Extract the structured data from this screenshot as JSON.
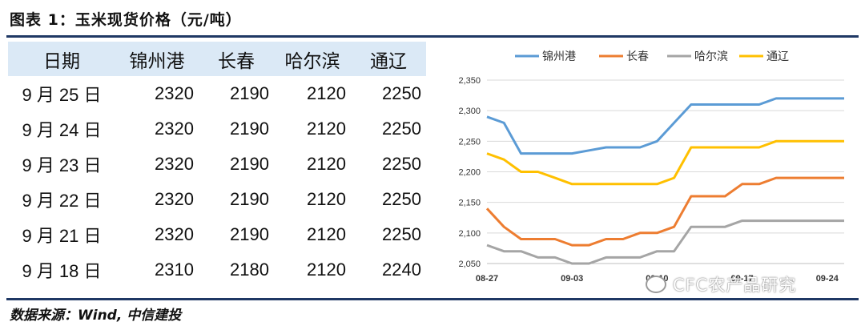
{
  "figure": {
    "title": "图表 1：玉米现货价格（元/吨）",
    "source": "数据来源：Wind, 中信建投",
    "watermark": "CFC农产品研究"
  },
  "table": {
    "headers": [
      "日期",
      "锦州港",
      "长春",
      "哈尔滨",
      "通辽"
    ],
    "rows": [
      [
        "9 月 25 日",
        "2320",
        "2190",
        "2120",
        "2250"
      ],
      [
        "9 月 24 日",
        "2320",
        "2190",
        "2120",
        "2250"
      ],
      [
        "9 月 23 日",
        "2320",
        "2190",
        "2120",
        "2250"
      ],
      [
        "9 月 22 日",
        "2320",
        "2190",
        "2120",
        "2250"
      ],
      [
        "9 月 21 日",
        "2320",
        "2190",
        "2120",
        "2250"
      ],
      [
        "9 月 18 日",
        "2310",
        "2180",
        "2120",
        "2240"
      ]
    ]
  },
  "chart_data": {
    "type": "line",
    "x": [
      "08-27",
      "08-28",
      "08-31",
      "09-01",
      "09-02",
      "09-03",
      "09-04",
      "09-07",
      "09-08",
      "09-09",
      "09-10",
      "09-11",
      "09-14",
      "09-15",
      "09-16",
      "09-17",
      "09-18",
      "09-21",
      "09-22",
      "09-23",
      "09-24",
      "09-25"
    ],
    "xticks": [
      "08-27",
      "09-03",
      "09-10",
      "09-17",
      "09-24"
    ],
    "ylim": [
      2050,
      2350
    ],
    "yticks": [
      2050,
      2100,
      2150,
      2200,
      2250,
      2300,
      2350
    ],
    "ytick_labels": [
      "2,050",
      "2,100",
      "2,150",
      "2,200",
      "2,250",
      "2,300",
      "2,350"
    ],
    "grid": true,
    "legend_position": "top",
    "series": [
      {
        "name": "锦州港",
        "color": "#5b9bd5",
        "values": [
          2290,
          2280,
          2230,
          2230,
          2230,
          2230,
          2235,
          2240,
          2240,
          2240,
          2250,
          2280,
          2310,
          2310,
          2310,
          2310,
          2310,
          2320,
          2320,
          2320,
          2320,
          2320
        ]
      },
      {
        "name": "长春",
        "color": "#ed7d31",
        "values": [
          2140,
          2110,
          2090,
          2090,
          2090,
          2080,
          2080,
          2090,
          2090,
          2100,
          2100,
          2110,
          2160,
          2160,
          2160,
          2180,
          2180,
          2190,
          2190,
          2190,
          2190,
          2190
        ]
      },
      {
        "name": "哈尔滨",
        "color": "#a5a5a5",
        "values": [
          2080,
          2070,
          2070,
          2060,
          2060,
          2050,
          2050,
          2060,
          2060,
          2060,
          2070,
          2070,
          2110,
          2110,
          2110,
          2120,
          2120,
          2120,
          2120,
          2120,
          2120,
          2120
        ]
      },
      {
        "name": "通辽",
        "color": "#ffc000",
        "values": [
          2230,
          2220,
          2200,
          2200,
          2190,
          2180,
          2180,
          2180,
          2180,
          2180,
          2180,
          2190,
          2240,
          2240,
          2240,
          2240,
          2240,
          2250,
          2250,
          2250,
          2250,
          2250
        ]
      }
    ]
  }
}
